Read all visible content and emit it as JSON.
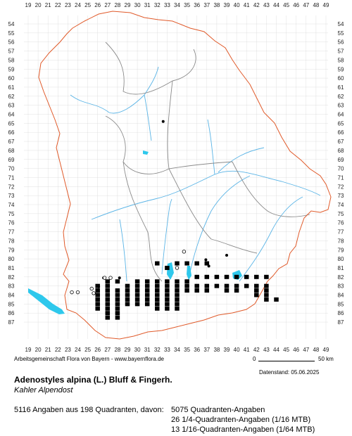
{
  "axes": {
    "x_labels": [
      "19",
      "20",
      "21",
      "22",
      "23",
      "24",
      "25",
      "26",
      "27",
      "28",
      "29",
      "30",
      "31",
      "32",
      "33",
      "34",
      "35",
      "36",
      "37",
      "38",
      "39",
      "40",
      "41",
      "42",
      "43",
      "44",
      "45",
      "46",
      "47",
      "48",
      "49"
    ],
    "y_labels": [
      "54",
      "55",
      "56",
      "57",
      "58",
      "59",
      "60",
      "61",
      "62",
      "63",
      "64",
      "65",
      "66",
      "67",
      "68",
      "69",
      "70",
      "71",
      "72",
      "73",
      "74",
      "75",
      "76",
      "77",
      "78",
      "79",
      "80",
      "81",
      "82",
      "83",
      "84",
      "85",
      "86",
      "87"
    ]
  },
  "legend": {
    "credit": "Arbeitsgemeinschaft Flora von Bayern - www.bayernflora.de",
    "scale_start": "0",
    "scale_end": "50 km",
    "date": "Datenstand: 05.06.2025"
  },
  "species": {
    "title": "Adenostyles alpina (L.) Bluff & Fingerh.",
    "common_name": "Kahler Alpendost"
  },
  "stats": {
    "summary": "5116 Angaben aus 198 Quadranten, davon:",
    "quadrant": "5075 Quadranten-Angaben",
    "quarter": "26 1/4-Quadranten-Angaben (1/16 MTB)",
    "sixteenth": "13 1/16-Quadranten-Angaben (1/64 MTB)"
  },
  "colors": {
    "background": "#ffffff",
    "border_state": "#e05a2a",
    "border_region": "#8a8a8a",
    "rivers": "#5ab4e6",
    "lakes": "#2ec8ec",
    "grid": "#cccccc",
    "markers": "#000000"
  },
  "occurrence_cells": [
    [
      32,
      80.5
    ],
    [
      33,
      81
    ],
    [
      34,
      80.5
    ],
    [
      35,
      80.5
    ],
    [
      36,
      80.5
    ],
    [
      37,
      80.5
    ],
    [
      27,
      82.5
    ],
    [
      28,
      82.5
    ],
    [
      30,
      82.5
    ],
    [
      31,
      82.5
    ],
    [
      32,
      82.5
    ],
    [
      33,
      82.5
    ],
    [
      34,
      82.5
    ],
    [
      35,
      82.5
    ],
    [
      36,
      82
    ],
    [
      37,
      82
    ],
    [
      38,
      82
    ],
    [
      39,
      82
    ],
    [
      40,
      82
    ],
    [
      41,
      82
    ],
    [
      42,
      82
    ],
    [
      43,
      82
    ],
    [
      26,
      83
    ],
    [
      27,
      83
    ],
    [
      29,
      83
    ],
    [
      30,
      83
    ],
    [
      31,
      83
    ],
    [
      32,
      83
    ],
    [
      33,
      83
    ],
    [
      34,
      83
    ],
    [
      35,
      83
    ],
    [
      36,
      83
    ],
    [
      37,
      83
    ],
    [
      38,
      83
    ],
    [
      39,
      83
    ],
    [
      40,
      83
    ],
    [
      41,
      83
    ],
    [
      42,
      83
    ],
    [
      43,
      83
    ],
    [
      26,
      83.5
    ],
    [
      27,
      83.5
    ],
    [
      28,
      83.5
    ],
    [
      29,
      83.5
    ],
    [
      30,
      83.5
    ],
    [
      31,
      83.5
    ],
    [
      32,
      83.5
    ],
    [
      33,
      83.5
    ],
    [
      34,
      83.5
    ],
    [
      35,
      83.5
    ],
    [
      36,
      83.5
    ],
    [
      37,
      83.5
    ],
    [
      39,
      83.5
    ],
    [
      40,
      83.5
    ],
    [
      42,
      83.5
    ],
    [
      43,
      83.5
    ],
    [
      26,
      84
    ],
    [
      27,
      84
    ],
    [
      28,
      84
    ],
    [
      29,
      84
    ],
    [
      30,
      84
    ],
    [
      31,
      84
    ],
    [
      32,
      84
    ],
    [
      33,
      84
    ],
    [
      34,
      84
    ],
    [
      42,
      84
    ],
    [
      43,
      84
    ],
    [
      26,
      84.5
    ],
    [
      27,
      84.5
    ],
    [
      28,
      84.5
    ],
    [
      29,
      84.5
    ],
    [
      30,
      84.5
    ],
    [
      31,
      84.5
    ],
    [
      32,
      84.5
    ],
    [
      33,
      84.5
    ],
    [
      34,
      84.5
    ],
    [
      43,
      84.5
    ],
    [
      44,
      84.5
    ],
    [
      26,
      85
    ],
    [
      27,
      85
    ],
    [
      28,
      85
    ],
    [
      29,
      85
    ],
    [
      30,
      85
    ],
    [
      31,
      85
    ],
    [
      32,
      85
    ],
    [
      33,
      85
    ],
    [
      34,
      85
    ],
    [
      26,
      85.5
    ],
    [
      27,
      85.5
    ],
    [
      28,
      85.5
    ],
    [
      32,
      85.5
    ],
    [
      33,
      85.5
    ],
    [
      34,
      85.5
    ],
    [
      27,
      86
    ],
    [
      28,
      86
    ],
    [
      27,
      86.5
    ],
    [
      28,
      86.5
    ]
  ],
  "observation_dots": [
    [
      32.6,
      64.8
    ],
    [
      36.9,
      80.1
    ],
    [
      37.2,
      80.8
    ],
    [
      39.0,
      79.6
    ],
    [
      26.6,
      82.1
    ],
    [
      26.1,
      83.1
    ],
    [
      28.2,
      82.1
    ]
  ],
  "open_circles": [
    [
      34.7,
      79.2
    ],
    [
      34.0,
      81.0
    ],
    [
      26.7,
      82.1
    ],
    [
      27.3,
      82.1
    ],
    [
      25.4,
      83.3
    ],
    [
      25.6,
      83.8
    ],
    [
      23.4,
      83.7
    ],
    [
      24.0,
      83.7
    ]
  ]
}
